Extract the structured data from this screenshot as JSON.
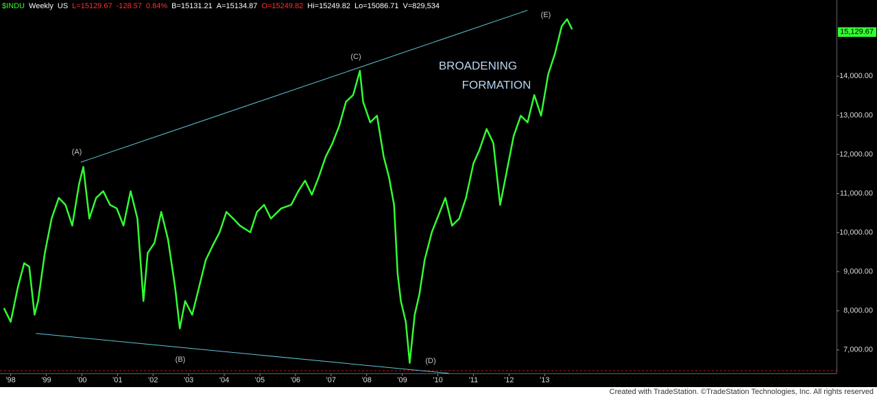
{
  "chart_data": {
    "type": "line",
    "header": [
      {
        "text": "$INDU",
        "color": "#33ff33"
      },
      {
        "text": "Weekly",
        "color": "#ffffff"
      },
      {
        "text": "US",
        "color": "#ffffff"
      },
      {
        "text": "L=15129.67",
        "color": "#ff3030"
      },
      {
        "text": "-128.57",
        "color": "#ff3030"
      },
      {
        "text": "0.84%",
        "color": "#ff3030"
      },
      {
        "text": "B=15131.21",
        "color": "#ffffff"
      },
      {
        "text": "A=15134.87",
        "color": "#ffffff"
      },
      {
        "text": "O=15249.82",
        "color": "#ff3030"
      },
      {
        "text": "Hi=15249.82",
        "color": "#ffffff"
      },
      {
        "text": "Lo=15086.71",
        "color": "#ffffff"
      },
      {
        "text": "V=829,534",
        "color": "#ffffff"
      }
    ],
    "annotations": [
      "(A)",
      "(B)",
      "(C)",
      "(D)",
      "(E)",
      "BROADENING",
      "FORMATION"
    ],
    "footer": "Created with TradeStation. ©TradeStation Technologies, Inc. All rights reserved",
    "x": [
      1997.81,
      1998.0,
      1998.2,
      1998.38,
      1998.52,
      1998.67,
      1998.77,
      1998.96,
      1999.15,
      1999.35,
      1999.54,
      1999.73,
      1999.92,
      2000.04,
      2000.21,
      2000.4,
      2000.6,
      2000.79,
      2000.98,
      2001.17,
      2001.37,
      2001.56,
      2001.73,
      2001.85,
      2002.04,
      2002.23,
      2002.42,
      2002.62,
      2002.75,
      2002.9,
      2003.1,
      2003.29,
      2003.48,
      2003.67,
      2003.87,
      2004.06,
      2004.25,
      2004.44,
      2004.73,
      2004.92,
      2005.12,
      2005.31,
      2005.6,
      2005.88,
      2006.08,
      2006.27,
      2006.46,
      2006.65,
      2006.85,
      2007.04,
      2007.23,
      2007.42,
      2007.62,
      2007.81,
      2007.9,
      2008.1,
      2008.29,
      2008.48,
      2008.63,
      2008.77,
      2008.87,
      2008.96,
      2009.1,
      2009.21,
      2009.35,
      2009.48,
      2009.63,
      2009.83,
      2010.02,
      2010.21,
      2010.4,
      2010.6,
      2010.79,
      2011.0,
      2011.17,
      2011.37,
      2011.56,
      2011.75,
      2011.94,
      2012.13,
      2012.33,
      2012.52,
      2012.71,
      2012.9,
      2013.1,
      2013.29,
      2013.48,
      2013.63,
      2013.77
    ],
    "series": [
      {
        "name": "$INDU",
        "color": "#33ff33",
        "values": [
          8070,
          7720,
          8600,
          9220,
          9130,
          7900,
          8250,
          9480,
          10360,
          10890,
          10710,
          10180,
          11240,
          11680,
          10360,
          10890,
          11060,
          10710,
          10620,
          10180,
          11060,
          10360,
          8250,
          9480,
          9740,
          10530,
          9830,
          8600,
          7550,
          8250,
          7900,
          8600,
          9300,
          9660,
          10010,
          10530,
          10360,
          10180,
          10010,
          10530,
          10710,
          10360,
          10620,
          10710,
          11060,
          11330,
          10970,
          11410,
          11940,
          12290,
          12730,
          13350,
          13520,
          14140,
          13350,
          12820,
          12990,
          11940,
          11410,
          10710,
          8950,
          8250,
          7720,
          6670,
          7900,
          8420,
          9300,
          10010,
          10450,
          10890,
          10180,
          10360,
          10890,
          11770,
          12120,
          12650,
          12290,
          10710,
          11590,
          12470,
          12990,
          12820,
          13520,
          12990,
          14050,
          14580,
          15280,
          15460,
          15200
        ]
      }
    ],
    "trendlines": [
      {
        "x": [
          1999.97,
          2012.52
        ],
        "values": [
          11801,
          15688
        ],
        "color": "#5fc8d8"
      },
      {
        "x": [
          1998.71,
          2010.31
        ],
        "values": [
          7422,
          6402
        ],
        "color": "#5fc8d8"
      }
    ],
    "last_price": {
      "value": 15129.67,
      "label": "15,129.67"
    },
    "xlim": [
      1997.7,
      2021.2
    ],
    "ylim": [
      6400,
      15950
    ],
    "xticks": [
      {
        "value": 1998,
        "label": "'98"
      },
      {
        "value": 1999,
        "label": "'99"
      },
      {
        "value": 2000,
        "label": "'00"
      },
      {
        "value": 2001,
        "label": "'01"
      },
      {
        "value": 2002,
        "label": "'02"
      },
      {
        "value": 2003,
        "label": "'03"
      },
      {
        "value": 2004,
        "label": "'04"
      },
      {
        "value": 2005,
        "label": "'05"
      },
      {
        "value": 2006,
        "label": "'06"
      },
      {
        "value": 2007,
        "label": "'07"
      },
      {
        "value": 2008,
        "label": "'08"
      },
      {
        "value": 2009,
        "label": "'09"
      },
      {
        "value": 2010,
        "label": "'10"
      },
      {
        "value": 2011,
        "label": "'11"
      },
      {
        "value": 2012,
        "label": "'12"
      },
      {
        "value": 2013,
        "label": "'13"
      }
    ],
    "yticks": [
      {
        "value": 7000,
        "label": "7,000.00"
      },
      {
        "value": 8000,
        "label": "8,000.00"
      },
      {
        "value": 9000,
        "label": "9,000.00"
      },
      {
        "value": 10000,
        "label": "10,000.00"
      },
      {
        "value": 11000,
        "label": "11,000.00"
      },
      {
        "value": 12000,
        "label": "12,000.00"
      },
      {
        "value": 13000,
        "label": "13,000.00"
      },
      {
        "value": 14000,
        "label": "14,000.00"
      }
    ]
  }
}
